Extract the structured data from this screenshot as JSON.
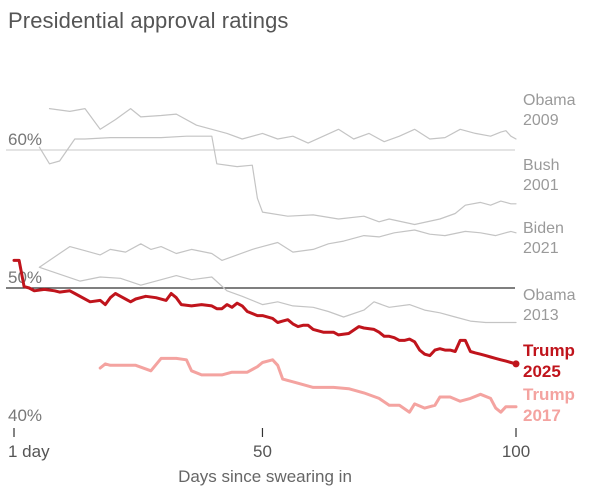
{
  "title": "Presidential approval ratings",
  "colors": {
    "grid": "#c8c8c8",
    "gridStrong": "#333333",
    "gray": "#c4c4c4",
    "grayLabel": "#9a9a9a",
    "trump2025": "#c0141c",
    "trump2017": "#f4a3a0"
  },
  "chart_data": {
    "type": "line",
    "title": "Presidential approval ratings",
    "xlabel": "Days since swearing in",
    "ylabel": "",
    "xlim": [
      1,
      100
    ],
    "ylim": [
      38.5,
      63
    ],
    "x_ticks": [
      {
        "value": 1,
        "label": "1 day"
      },
      {
        "value": 50,
        "label": "50"
      },
      {
        "value": 100,
        "label": "100"
      }
    ],
    "y_lines": [
      {
        "value": 60,
        "label": "60%",
        "style": "light"
      },
      {
        "value": 50,
        "label": "50%",
        "style": "strong"
      },
      {
        "value": 40,
        "label": "40%",
        "style": "none"
      }
    ],
    "series": [
      {
        "key": "obama2009",
        "name": "Obama",
        "year": "2009",
        "style": "gray",
        "points": [
          [
            8,
            63.0
          ],
          [
            12,
            62.8
          ],
          [
            15,
            63.0
          ],
          [
            18,
            61.5
          ],
          [
            21,
            62.2
          ],
          [
            24,
            63.0
          ],
          [
            26,
            62.4
          ],
          [
            30,
            62.5
          ],
          [
            33,
            62.6
          ],
          [
            37,
            61.8
          ],
          [
            40,
            61.5
          ],
          [
            43,
            61.2
          ],
          [
            46,
            60.8
          ],
          [
            50,
            61.2
          ],
          [
            53,
            60.8
          ],
          [
            56,
            61.0
          ],
          [
            59,
            60.5
          ],
          [
            62,
            61.0
          ],
          [
            65,
            61.5
          ],
          [
            68,
            60.8
          ],
          [
            71,
            61.2
          ],
          [
            74,
            60.6
          ],
          [
            77,
            61.0
          ],
          [
            80,
            61.5
          ],
          [
            83,
            60.8
          ],
          [
            86,
            60.9
          ],
          [
            89,
            61.5
          ],
          [
            92,
            61.2
          ],
          [
            95,
            61.0
          ],
          [
            97,
            61.3
          ],
          [
            98,
            61.4
          ],
          [
            99,
            61.0
          ],
          [
            100,
            60.8
          ]
        ]
      },
      {
        "key": "bush2001",
        "name": "Bush",
        "year": "2001",
        "style": "gray",
        "points": [
          [
            6,
            60.2
          ],
          [
            8,
            59.0
          ],
          [
            10,
            59.2
          ],
          [
            13,
            60.8
          ],
          [
            15,
            60.8
          ],
          [
            20,
            60.9
          ],
          [
            25,
            60.9
          ],
          [
            30,
            60.9
          ],
          [
            35,
            61.0
          ],
          [
            40,
            61.0
          ],
          [
            41,
            59.0
          ],
          [
            45,
            58.8
          ],
          [
            48,
            58.9
          ],
          [
            49,
            56.5
          ],
          [
            50,
            55.5
          ],
          [
            55,
            55.2
          ],
          [
            60,
            55.3
          ],
          [
            65,
            55.0
          ],
          [
            70,
            55.2
          ],
          [
            73,
            54.8
          ],
          [
            75,
            55.0
          ],
          [
            80,
            54.6
          ],
          [
            85,
            55.0
          ],
          [
            88,
            55.4
          ],
          [
            90,
            56.0
          ],
          [
            93,
            56.2
          ],
          [
            95,
            56.0
          ],
          [
            97,
            56.3
          ],
          [
            99,
            56.1
          ],
          [
            100,
            56.1
          ]
        ]
      },
      {
        "key": "biden2021",
        "name": "Biden",
        "year": "2021",
        "style": "gray",
        "points": [
          [
            6,
            51.5
          ],
          [
            10,
            52.5
          ],
          [
            12,
            53.0
          ],
          [
            15,
            52.7
          ],
          [
            18,
            52.4
          ],
          [
            20,
            52.8
          ],
          [
            23,
            52.6
          ],
          [
            26,
            53.2
          ],
          [
            28,
            52.8
          ],
          [
            30,
            53.0
          ],
          [
            33,
            52.5
          ],
          [
            36,
            52.8
          ],
          [
            40,
            52.5
          ],
          [
            42,
            52.0
          ],
          [
            45,
            52.4
          ],
          [
            48,
            52.8
          ],
          [
            50,
            53.0
          ],
          [
            53,
            53.3
          ],
          [
            56,
            52.6
          ],
          [
            60,
            52.8
          ],
          [
            63,
            53.2
          ],
          [
            66,
            53.4
          ],
          [
            70,
            53.8
          ],
          [
            73,
            53.7
          ],
          [
            76,
            54.0
          ],
          [
            80,
            54.2
          ],
          [
            83,
            53.9
          ],
          [
            86,
            53.8
          ],
          [
            90,
            54.1
          ],
          [
            93,
            54.0
          ],
          [
            96,
            53.8
          ],
          [
            99,
            54.1
          ],
          [
            100,
            54.0
          ]
        ]
      },
      {
        "key": "obama2013",
        "name": "Obama",
        "year": "2013",
        "style": "gray",
        "points": [
          [
            6,
            51.5
          ],
          [
            10,
            51.0
          ],
          [
            14,
            50.5
          ],
          [
            18,
            50.8
          ],
          [
            22,
            50.7
          ],
          [
            26,
            50.2
          ],
          [
            30,
            50.6
          ],
          [
            33,
            50.9
          ],
          [
            36,
            50.6
          ],
          [
            40,
            50.8
          ],
          [
            43,
            49.8
          ],
          [
            46,
            49.4
          ],
          [
            50,
            48.8
          ],
          [
            53,
            49.0
          ],
          [
            56,
            48.7
          ],
          [
            60,
            48.6
          ],
          [
            63,
            48.3
          ],
          [
            66,
            47.9
          ],
          [
            70,
            48.4
          ],
          [
            72,
            49.0
          ],
          [
            75,
            48.6
          ],
          [
            79,
            48.8
          ],
          [
            82,
            48.4
          ],
          [
            85,
            48.2
          ],
          [
            88,
            47.9
          ],
          [
            91,
            47.6
          ],
          [
            94,
            47.5
          ],
          [
            97,
            47.5
          ],
          [
            100,
            47.5
          ]
        ]
      },
      {
        "key": "trump2025",
        "name": "Trump",
        "year": "2025",
        "style": "trump2025",
        "points": [
          [
            1,
            52.0
          ],
          [
            2,
            52.0
          ],
          [
            3,
            50.1
          ],
          [
            4,
            50.0
          ],
          [
            5,
            49.8
          ],
          [
            7,
            49.9
          ],
          [
            9,
            49.8
          ],
          [
            10,
            49.7
          ],
          [
            12,
            49.8
          ],
          [
            13,
            49.6
          ],
          [
            16,
            49.0
          ],
          [
            18,
            49.1
          ],
          [
            19,
            48.8
          ],
          [
            20,
            49.3
          ],
          [
            21,
            49.6
          ],
          [
            22,
            49.4
          ],
          [
            24,
            49.0
          ],
          [
            25,
            49.2
          ],
          [
            27,
            49.4
          ],
          [
            29,
            49.3
          ],
          [
            31,
            49.1
          ],
          [
            32,
            49.6
          ],
          [
            33,
            49.3
          ],
          [
            34,
            48.8
          ],
          [
            36,
            48.7
          ],
          [
            38,
            48.8
          ],
          [
            40,
            48.7
          ],
          [
            41,
            48.5
          ],
          [
            42,
            48.5
          ],
          [
            43,
            48.8
          ],
          [
            44,
            48.6
          ],
          [
            45,
            48.9
          ],
          [
            46,
            48.7
          ],
          [
            47,
            48.3
          ],
          [
            49,
            48.0
          ],
          [
            50,
            48.0
          ],
          [
            52,
            47.8
          ],
          [
            53,
            47.5
          ],
          [
            54,
            47.6
          ],
          [
            55,
            47.7
          ],
          [
            56,
            47.4
          ],
          [
            57,
            47.2
          ],
          [
            58,
            47.3
          ],
          [
            59,
            47.3
          ],
          [
            60,
            47.0
          ],
          [
            62,
            46.8
          ],
          [
            64,
            46.8
          ],
          [
            65,
            46.6
          ],
          [
            67,
            46.7
          ],
          [
            69,
            47.2
          ],
          [
            70,
            47.1
          ],
          [
            72,
            47.0
          ],
          [
            73,
            46.8
          ],
          [
            74,
            46.5
          ],
          [
            75,
            46.5
          ],
          [
            76,
            46.4
          ],
          [
            77,
            46.2
          ],
          [
            78,
            46.2
          ],
          [
            79,
            46.3
          ],
          [
            80,
            46.1
          ],
          [
            81,
            45.5
          ],
          [
            82,
            45.2
          ],
          [
            83,
            45.1
          ],
          [
            84,
            45.5
          ],
          [
            85,
            45.6
          ],
          [
            86,
            45.5
          ],
          [
            87,
            45.5
          ],
          [
            88,
            45.4
          ],
          [
            89,
            46.2
          ],
          [
            90,
            46.2
          ],
          [
            91,
            45.4
          ],
          [
            92,
            45.3
          ],
          [
            93,
            45.2
          ],
          [
            94,
            45.1
          ],
          [
            95,
            45.0
          ],
          [
            96,
            44.9
          ],
          [
            97,
            44.8
          ],
          [
            98,
            44.7
          ],
          [
            99,
            44.6
          ],
          [
            100,
            44.5
          ]
        ]
      },
      {
        "key": "trump2017",
        "name": "Trump",
        "year": "2017",
        "style": "trump2017",
        "points": [
          [
            18,
            44.2
          ],
          [
            19,
            44.5
          ],
          [
            20,
            44.4
          ],
          [
            23,
            44.4
          ],
          [
            25,
            44.4
          ],
          [
            28,
            44.0
          ],
          [
            30,
            44.9
          ],
          [
            33,
            44.9
          ],
          [
            35,
            44.8
          ],
          [
            36,
            44.0
          ],
          [
            38,
            43.7
          ],
          [
            42,
            43.7
          ],
          [
            44,
            43.9
          ],
          [
            47,
            43.9
          ],
          [
            49,
            44.3
          ],
          [
            50,
            44.6
          ],
          [
            52,
            44.8
          ],
          [
            53,
            44.4
          ],
          [
            54,
            43.4
          ],
          [
            56,
            43.2
          ],
          [
            60,
            42.8
          ],
          [
            64,
            42.8
          ],
          [
            67,
            42.7
          ],
          [
            70,
            42.4
          ],
          [
            73,
            42.0
          ],
          [
            75,
            41.5
          ],
          [
            77,
            41.5
          ],
          [
            79,
            41.0
          ],
          [
            80,
            41.6
          ],
          [
            82,
            41.3
          ],
          [
            84,
            41.5
          ],
          [
            85,
            42.1
          ],
          [
            87,
            42.1
          ],
          [
            89,
            41.8
          ],
          [
            91,
            42.0
          ],
          [
            93,
            42.3
          ],
          [
            95,
            42.0
          ],
          [
            96,
            41.3
          ],
          [
            97,
            41.0
          ],
          [
            98,
            41.4
          ],
          [
            100,
            41.4
          ]
        ]
      }
    ]
  }
}
